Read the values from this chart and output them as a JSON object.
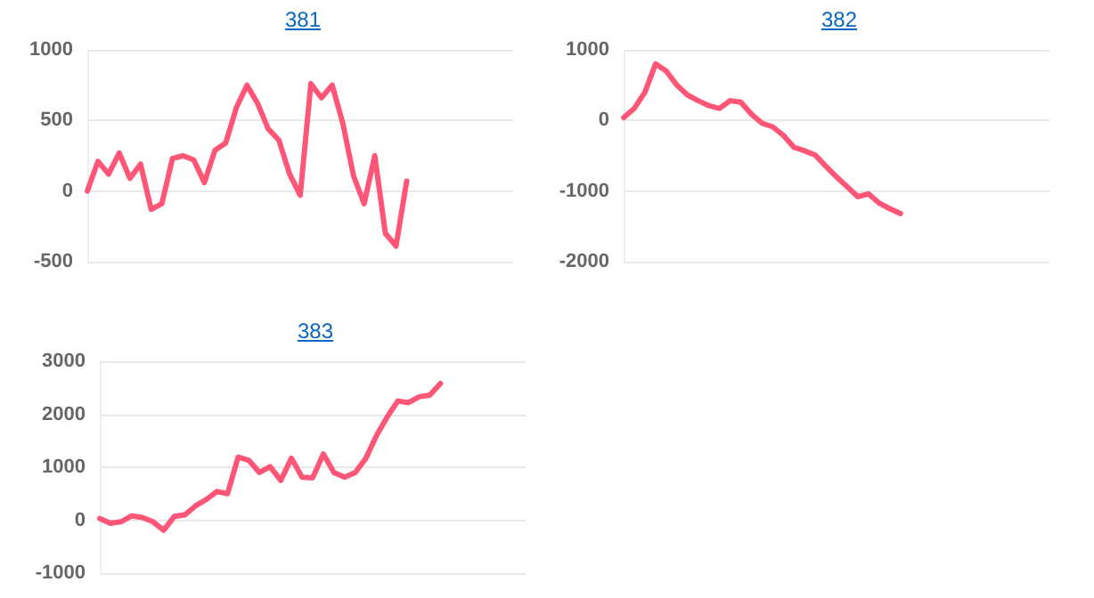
{
  "chart_data": [
    {
      "type": "line",
      "title": "381",
      "categories": [
        null,
        null,
        null,
        null,
        null,
        null,
        null,
        null,
        null,
        null,
        null,
        null,
        null,
        null,
        null,
        null,
        null,
        null,
        null,
        null,
        null,
        null,
        null,
        null,
        null,
        null,
        null,
        null,
        null,
        null,
        null,
        null,
        null,
        null,
        null,
        null,
        null,
        null,
        null,
        null,
        null
      ],
      "values": [
        0,
        210,
        120,
        270,
        90,
        190,
        -130,
        -90,
        230,
        250,
        220,
        60,
        290,
        340,
        590,
        750,
        620,
        440,
        360,
        120,
        -30,
        760,
        660,
        750,
        480,
        110,
        -90,
        250,
        -300,
        -390,
        70,
        null,
        null,
        null,
        null,
        null,
        null,
        null,
        null,
        null,
        null
      ],
      "color": "#ff5577",
      "ylim": [
        -500,
        1000
      ],
      "yticks": [
        -500,
        0,
        500,
        1000
      ],
      "grid": "y",
      "line_style": "solid",
      "tick_labels": "y"
    },
    {
      "type": "line",
      "title": "382",
      "categories": [
        null,
        null,
        null,
        null,
        null,
        null,
        null,
        null,
        null,
        null,
        null,
        null,
        null,
        null,
        null,
        null,
        null,
        null,
        null,
        null,
        null,
        null,
        null,
        null,
        null,
        null,
        null,
        null,
        null,
        null,
        null,
        null,
        null,
        null,
        null,
        null,
        null,
        null,
        null,
        null,
        null
      ],
      "values": [
        40,
        170,
        400,
        800,
        700,
        500,
        360,
        280,
        210,
        170,
        280,
        260,
        90,
        -40,
        -90,
        -210,
        -380,
        -430,
        -490,
        -650,
        -800,
        -940,
        -1080,
        -1040,
        -1170,
        -1250,
        -1320,
        null,
        null,
        null,
        null,
        null,
        null,
        null,
        null,
        null,
        null,
        null,
        null,
        null,
        null
      ],
      "color": "#ff5577",
      "ylim": [
        -2000,
        1000
      ],
      "yticks": [
        -2000,
        -1000,
        0,
        1000
      ],
      "grid": "y",
      "line_style": "solid",
      "tick_labels": "y"
    },
    {
      "type": "line",
      "title": "383",
      "categories": [
        null,
        null,
        null,
        null,
        null,
        null,
        null,
        null,
        null,
        null,
        null,
        null,
        null,
        null,
        null,
        null,
        null,
        null,
        null,
        null,
        null,
        null,
        null,
        null,
        null,
        null,
        null,
        null,
        null,
        null,
        null,
        null,
        null,
        null,
        null,
        null,
        null,
        null,
        null,
        null,
        null
      ],
      "values": [
        30,
        -60,
        -30,
        80,
        50,
        -30,
        -190,
        70,
        100,
        270,
        390,
        540,
        500,
        1190,
        1130,
        900,
        1010,
        750,
        1170,
        810,
        800,
        1250,
        900,
        810,
        900,
        1170,
        1600,
        1950,
        2250,
        2220,
        2330,
        2360,
        2580,
        null,
        null,
        null,
        null,
        null,
        null,
        null,
        null
      ],
      "color": "#ff5577",
      "ylim": [
        -1000,
        3000
      ],
      "yticks": [
        -1000,
        0,
        1000,
        2000,
        3000
      ],
      "grid": "y",
      "line_style": "solid",
      "tick_labels": "y"
    }
  ]
}
